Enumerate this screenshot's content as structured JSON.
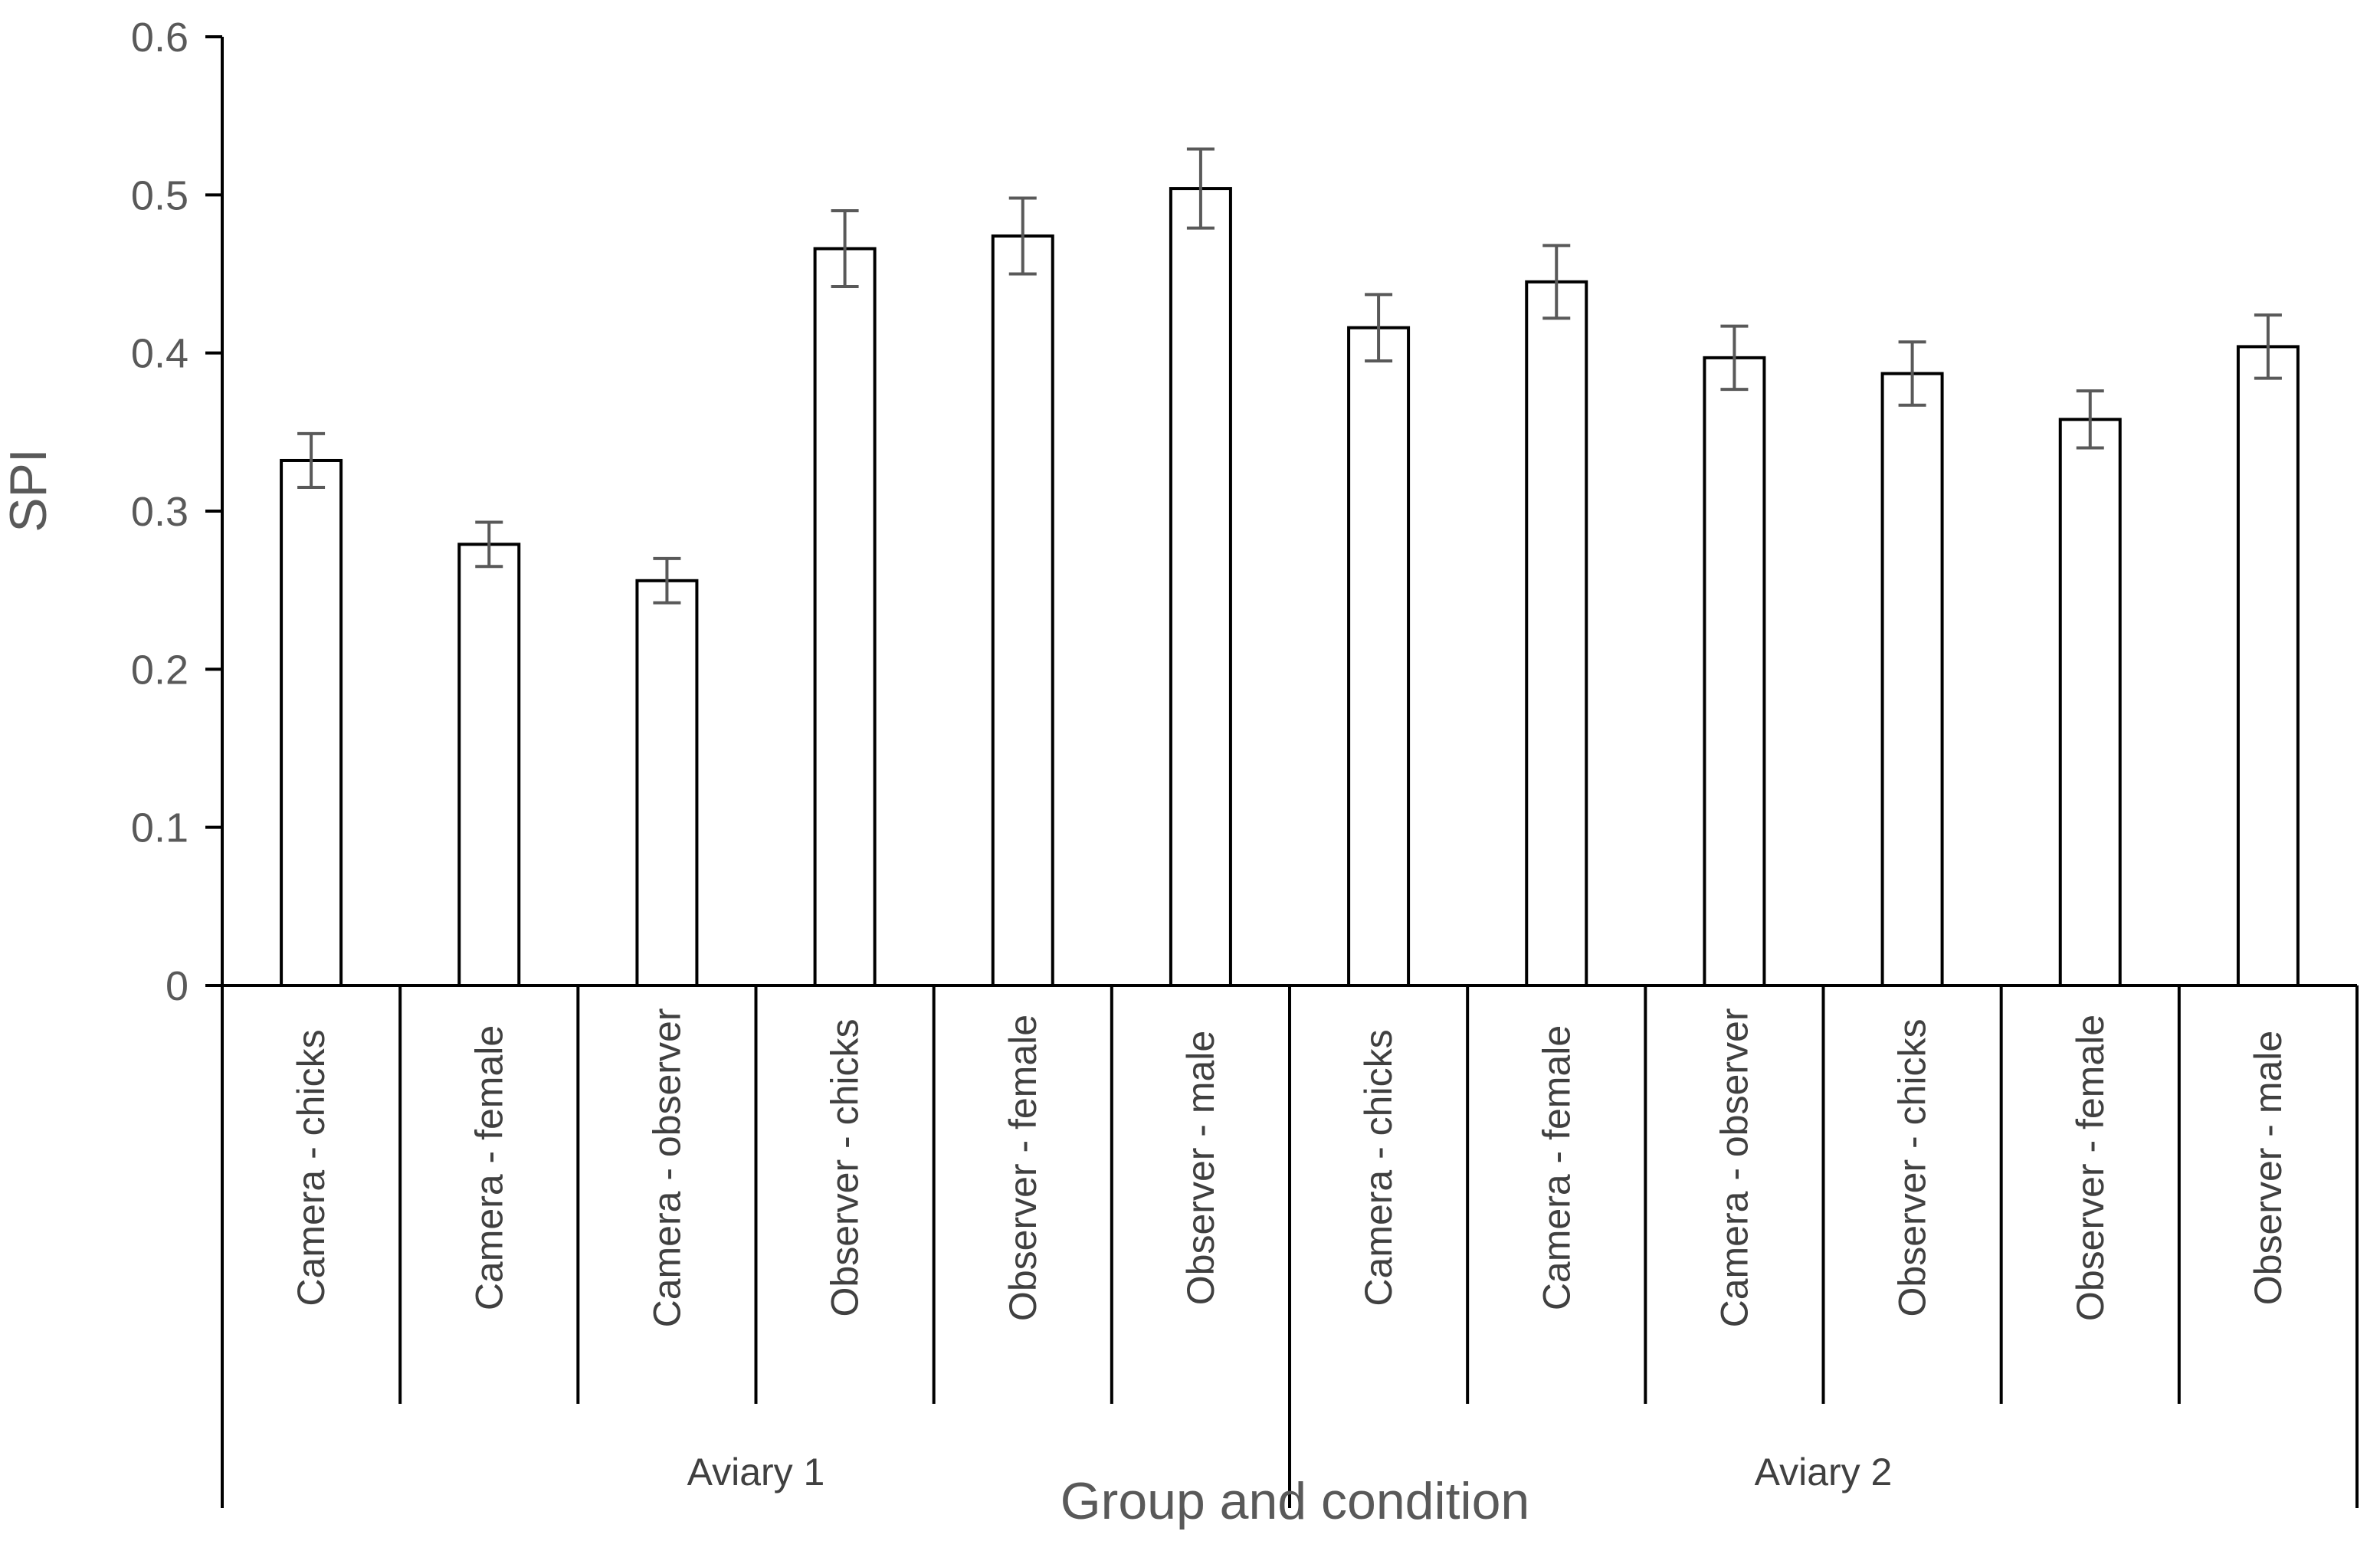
{
  "chart_data": {
    "type": "bar",
    "title": "",
    "xlabel": "Group and condition",
    "ylabel": "SPI",
    "ylim": [
      0,
      0.6
    ],
    "yticks": [
      0,
      0.1,
      0.2,
      0.3,
      0.4,
      0.5,
      0.6
    ],
    "grid": false,
    "legend": "none",
    "groups": [
      {
        "name": "Aviary 1",
        "start": 0,
        "count": 6
      },
      {
        "name": "Aviary 2",
        "start": 6,
        "count": 6
      }
    ],
    "categories": [
      "Camera - chicks",
      "Camera - female",
      "Camera - observer",
      "Observer - chicks",
      "Observer - female",
      "Observer - male",
      "Camera - chicks",
      "Camera - female",
      "Camera - observer",
      "Observer - chicks",
      "Observer - female",
      "Observer - male"
    ],
    "values": [
      0.332,
      0.279,
      0.256,
      0.466,
      0.474,
      0.504,
      0.416,
      0.445,
      0.397,
      0.387,
      0.358,
      0.404
    ],
    "errors": [
      0.017,
      0.014,
      0.014,
      0.024,
      0.024,
      0.025,
      0.021,
      0.023,
      0.02,
      0.02,
      0.018,
      0.02
    ],
    "colors": {
      "bar_fill": "#ffffff",
      "bar_stroke": "#000000",
      "error_bar": "#595959",
      "axis": "#000000",
      "text": "#595959"
    }
  }
}
